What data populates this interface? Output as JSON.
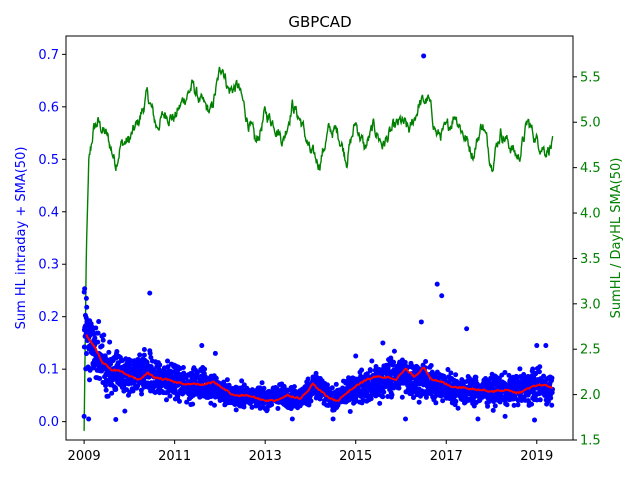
{
  "chart_data": {
    "type": "scatter",
    "title": "GBPCAD",
    "xlabel": "",
    "ylabel": "Sum HL intraday + SMA(50)",
    "y2label": "SumHL / DayHL SMA(50)",
    "xlim": [
      2008.6,
      2019.8
    ],
    "ylim": [
      -0.035,
      0.735
    ],
    "y2lim": [
      1.5,
      5.95
    ],
    "x_ticks": [
      2009,
      2011,
      2013,
      2015,
      2017,
      2019
    ],
    "y_ticks": [
      0.0,
      0.1,
      0.2,
      0.3,
      0.4,
      0.5,
      0.6,
      0.7
    ],
    "y2_ticks": [
      1.5,
      2.0,
      2.5,
      3.0,
      3.5,
      4.0,
      4.5,
      5.0,
      5.5
    ],
    "colors": {
      "scatter": "#0000ff",
      "sma": "#ff0000",
      "ratio": "#008000",
      "left_axis": "#0000ff",
      "right_axis": "#008000"
    },
    "series": [
      {
        "name": "Sum HL intraday",
        "axis": "left",
        "kind": "scatter",
        "anchors_x": [
          2009.0,
          2009.1,
          2009.3,
          2009.6,
          2010.0,
          2010.4,
          2010.6,
          2011.0,
          2011.5,
          2011.8,
          2012.2,
          2012.6,
          2013.0,
          2013.4,
          2013.8,
          2014.1,
          2014.5,
          2014.9,
          2015.3,
          2015.7,
          2016.0,
          2016.3,
          2016.6,
          2017.0,
          2017.5,
          2018.0,
          2018.5,
          2019.0,
          2019.35
        ],
        "anchors_y": [
          0.18,
          0.16,
          0.12,
          0.095,
          0.085,
          0.09,
          0.085,
          0.075,
          0.07,
          0.07,
          0.05,
          0.05,
          0.045,
          0.05,
          0.045,
          0.07,
          0.04,
          0.06,
          0.07,
          0.085,
          0.085,
          0.08,
          0.075,
          0.065,
          0.06,
          0.06,
          0.06,
          0.07,
          0.06
        ],
        "outliers": [
          [
            2009.05,
            0.235
          ],
          [
            2009.0,
            0.01
          ],
          [
            2009.1,
            0.005
          ],
          [
            2010.45,
            0.245
          ],
          [
            2016.5,
            0.697
          ],
          [
            2016.8,
            0.262
          ],
          [
            2016.9,
            0.24
          ],
          [
            2017.45,
            0.177
          ],
          [
            2016.45,
            0.19
          ],
          [
            2019.0,
            0.145
          ],
          [
            2019.2,
            0.145
          ],
          [
            2011.6,
            0.145
          ],
          [
            2011.9,
            0.13
          ],
          [
            2015.0,
            0.125
          ],
          [
            2015.6,
            0.15
          ],
          [
            2009.7,
            0.004
          ],
          [
            2009.9,
            0.02
          ],
          [
            2011.8,
            0.035
          ],
          [
            2013.6,
            0.005
          ],
          [
            2014.5,
            0.005
          ],
          [
            2016.1,
            0.005
          ],
          [
            2017.7,
            0.005
          ],
          [
            2018.3,
            0.01
          ],
          [
            2018.95,
            0.003
          ]
        ]
      },
      {
        "name": "SMA(50)",
        "axis": "left",
        "kind": "line",
        "x": [
          2009.05,
          2009.2,
          2009.4,
          2009.6,
          2009.8,
          2010.0,
          2010.2,
          2010.4,
          2010.6,
          2010.8,
          2011.0,
          2011.3,
          2011.6,
          2011.85,
          2012.0,
          2012.3,
          2012.6,
          2012.9,
          2013.2,
          2013.5,
          2013.8,
          2014.05,
          2014.2,
          2014.4,
          2014.6,
          2014.8,
          2015.0,
          2015.2,
          2015.4,
          2015.7,
          2015.9,
          2016.1,
          2016.3,
          2016.5,
          2016.7,
          2016.9,
          2017.1,
          2017.4,
          2017.7,
          2018.0,
          2018.3,
          2018.6,
          2018.9,
          2019.1,
          2019.35
        ],
        "y": [
          0.165,
          0.145,
          0.115,
          0.1,
          0.095,
          0.085,
          0.08,
          0.092,
          0.083,
          0.08,
          0.075,
          0.072,
          0.07,
          0.075,
          0.068,
          0.05,
          0.05,
          0.042,
          0.04,
          0.05,
          0.045,
          0.072,
          0.06,
          0.045,
          0.04,
          0.055,
          0.068,
          0.078,
          0.085,
          0.085,
          0.082,
          0.1,
          0.085,
          0.105,
          0.078,
          0.075,
          0.068,
          0.065,
          0.062,
          0.058,
          0.06,
          0.055,
          0.065,
          0.07,
          0.065
        ]
      },
      {
        "name": "SumHL / DayHL SMA(50)",
        "axis": "right",
        "kind": "line",
        "x": [
          2009.0,
          2009.05,
          2009.1,
          2009.2,
          2009.3,
          2009.5,
          2009.7,
          2009.8,
          2010.0,
          2010.2,
          2010.4,
          2010.6,
          2010.8,
          2011.0,
          2011.2,
          2011.4,
          2011.6,
          2011.8,
          2012.0,
          2012.05,
          2012.2,
          2012.4,
          2012.6,
          2012.8,
          2013.0,
          2013.2,
          2013.4,
          2013.6,
          2013.8,
          2014.0,
          2014.2,
          2014.4,
          2014.6,
          2014.8,
          2015.0,
          2015.2,
          2015.4,
          2015.6,
          2015.8,
          2016.0,
          2016.2,
          2016.4,
          2016.6,
          2016.8,
          2017.0,
          2017.2,
          2017.4,
          2017.6,
          2017.8,
          2018.0,
          2018.2,
          2018.4,
          2018.6,
          2018.8,
          2019.0,
          2019.2,
          2019.35
        ],
        "y": [
          1.6,
          3.6,
          4.5,
          4.9,
          5.0,
          4.85,
          4.55,
          4.75,
          4.8,
          5.0,
          5.3,
          4.95,
          5.1,
          5.05,
          5.25,
          5.4,
          5.2,
          5.1,
          5.55,
          5.65,
          5.35,
          5.4,
          5.05,
          4.75,
          5.1,
          5.0,
          4.8,
          5.2,
          5.0,
          4.65,
          4.55,
          4.9,
          4.9,
          4.6,
          5.0,
          4.7,
          4.95,
          4.75,
          4.9,
          5.0,
          4.9,
          5.2,
          5.25,
          4.85,
          4.9,
          5.1,
          4.85,
          4.65,
          5.0,
          4.55,
          4.9,
          4.75,
          4.6,
          5.0,
          4.8,
          4.7,
          4.75
        ]
      }
    ]
  }
}
